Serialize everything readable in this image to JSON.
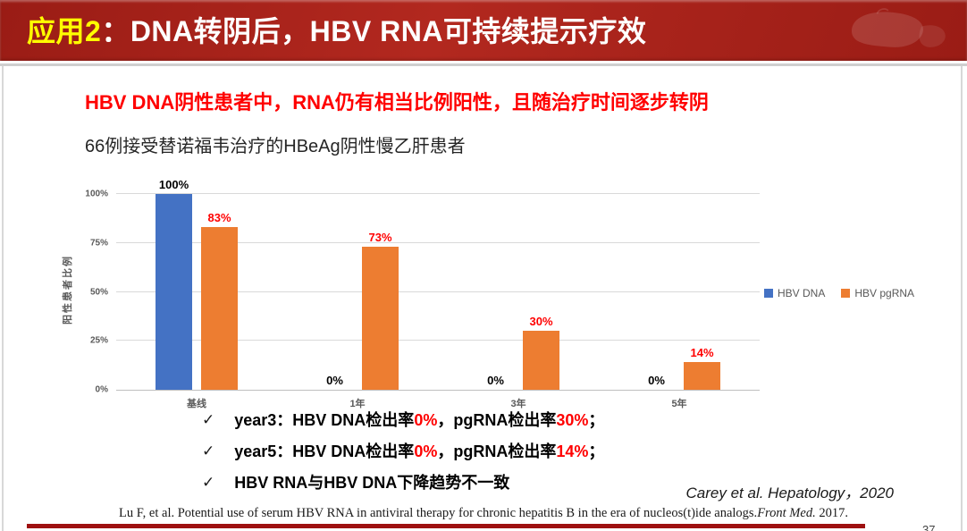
{
  "colors": {
    "banner_red": "#B2281F",
    "banner_red_dark": "#9A1C15",
    "title_highlight": "#FFFF00",
    "title_text": "#FFFFFF",
    "headline_red": "#FF0000",
    "bar_blue": "#4472C4",
    "bar_orange": "#ED7D31",
    "axis_gray": "#595959",
    "gridline_gray": "#D9D9D9",
    "bottom_bar_red": "#9E1010",
    "value_red": "#FF0000"
  },
  "slide": {
    "banner": {
      "title_highlight": "应用2",
      "title_rest": "：DNA转阴后，HBV RNA可持续提示疗效"
    },
    "headline": "HBV DNA阴性患者中，RNA仍有相当比例阳性，且随治疗时间逐步转阴",
    "chart_heading": "66例接受替诺福韦治疗的HBeAg阴性慢乙肝患者",
    "bullet_marker": "✓",
    "bullets": [
      {
        "segments": [
          {
            "text": "year3：HBV DNA检出率",
            "red": false
          },
          {
            "text": "0%",
            "red": true
          },
          {
            "text": "，pgRNA检出率",
            "red": false
          },
          {
            "text": "30%",
            "red": true
          },
          {
            "text": "；",
            "red": false
          }
        ]
      },
      {
        "segments": [
          {
            "text": "year5：HBV DNA检出率",
            "red": false
          },
          {
            "text": "0%",
            "red": true
          },
          {
            "text": "，pgRNA检出率",
            "red": false
          },
          {
            "text": "14%",
            "red": true
          },
          {
            "text": "；",
            "red": false
          }
        ]
      },
      {
        "segments": [
          {
            "text": "HBV RNA与HBV DNA下降趋势不一致",
            "red": false
          }
        ]
      }
    ],
    "citation_right": "Carey et al.  Hepatology，2020",
    "citation_bottom": [
      {
        "text": "Lu F, et al. Potential use of serum HBV RNA in antiviral therapy for chronic hepatitis B in the era of nucleos(t)ide analogs.",
        "italic": false
      },
      {
        "text": "Front Med.",
        "italic": true
      },
      {
        "text": " 2017.",
        "italic": false
      }
    ],
    "page_number": "37"
  },
  "chart_data": {
    "type": "bar",
    "categories": [
      "基线",
      "1年",
      "3年",
      "5年"
    ],
    "series": [
      {
        "name": "HBV DNA",
        "color": "#4472C4",
        "values": [
          100,
          0,
          0,
          0
        ],
        "labels": [
          "100%",
          "0%",
          "0%",
          "0%"
        ],
        "label_color": "#000000"
      },
      {
        "name": "HBV pgRNA",
        "color": "#ED7D31",
        "values": [
          83,
          73,
          30,
          14
        ],
        "labels": [
          "83%",
          "73%",
          "30%",
          "14%"
        ],
        "label_color": "#FF0000"
      }
    ],
    "ylabel": "阳性患者比例",
    "xlabel": "",
    "yticks": [
      0,
      25,
      50,
      75,
      100
    ],
    "ytick_labels": [
      "0%",
      "25%",
      "50%",
      "75%",
      "100%"
    ],
    "ylim": [
      0,
      100
    ],
    "grid": true,
    "legend_position": "right"
  }
}
